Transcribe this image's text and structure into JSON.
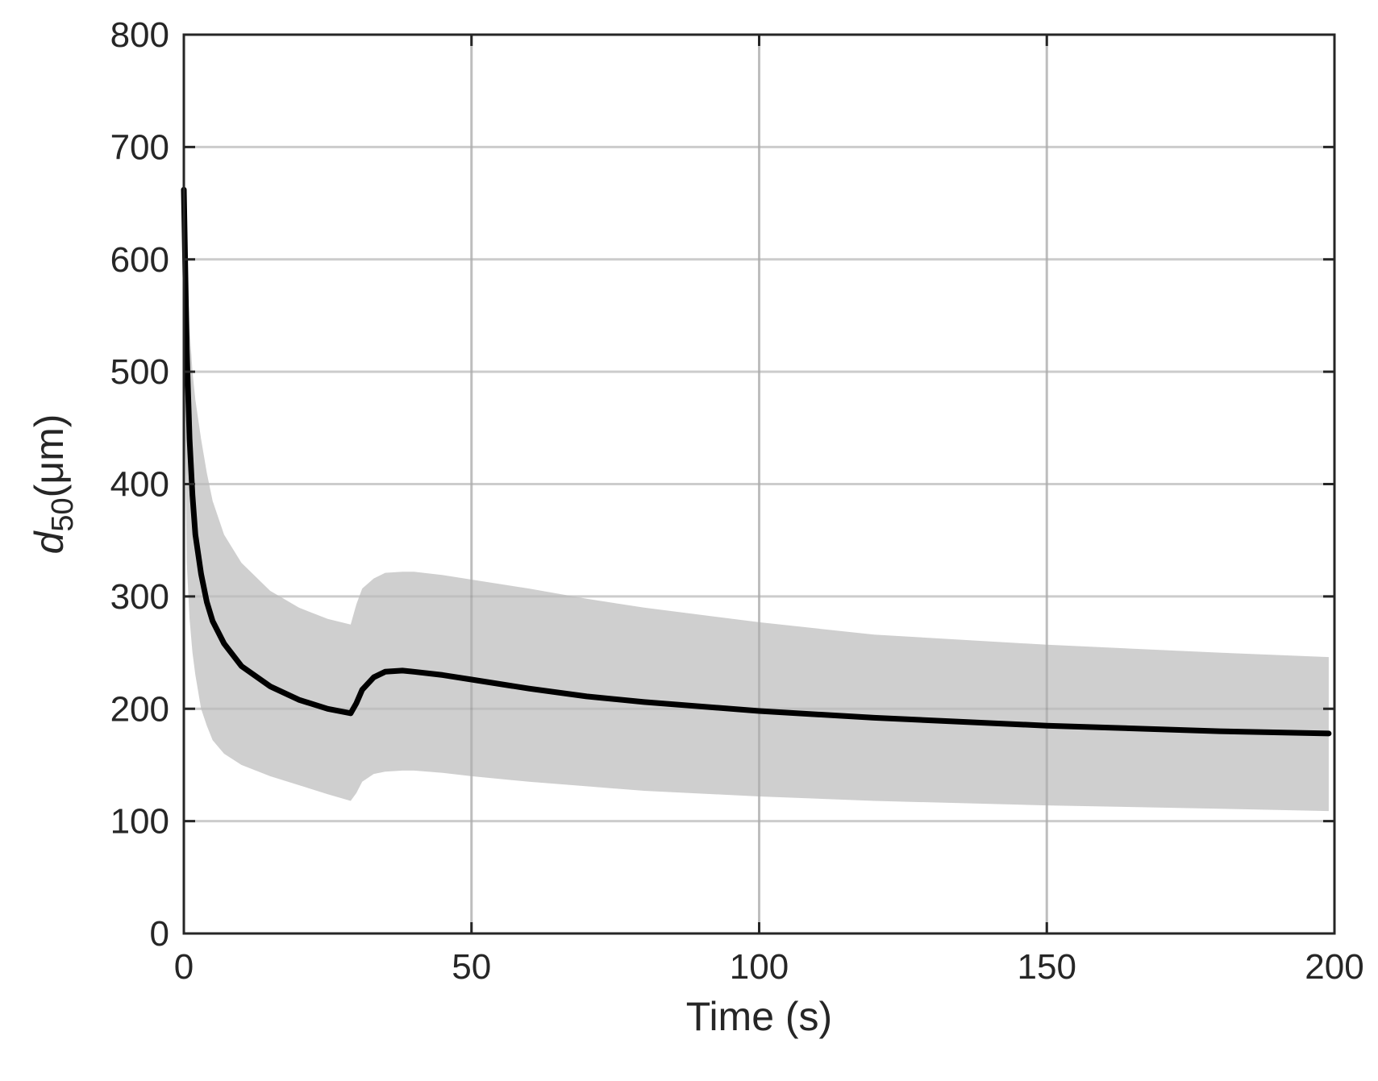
{
  "chart_data": {
    "type": "line",
    "xlabel": "Time (s)",
    "ylabel": {
      "symbol": "d",
      "subscript": "50",
      "unit": "(μm)"
    },
    "xlim": [
      0,
      200
    ],
    "ylim": [
      0,
      800
    ],
    "x_ticks": [
      0,
      50,
      100,
      150,
      200
    ],
    "y_ticks": [
      0,
      100,
      200,
      300,
      400,
      500,
      600,
      700,
      800
    ],
    "grid": true,
    "colors": {
      "line": "#000000",
      "band": "#cccccc",
      "axes": "#262626",
      "grid": "#d9d9d9"
    },
    "series": [
      {
        "type": "line",
        "x": [
          0,
          0.5,
          1,
          1.5,
          2,
          3,
          4,
          5,
          7,
          10,
          15,
          20,
          25,
          29,
          30,
          31,
          33,
          35,
          38,
          40,
          45,
          50,
          60,
          70,
          80,
          100,
          120,
          150,
          180,
          199
        ],
        "y": [
          662,
          520,
          440,
          390,
          355,
          320,
          295,
          278,
          258,
          238,
          220,
          208,
          200,
          196,
          205,
          217,
          228,
          233,
          234,
          233,
          230,
          226,
          218,
          211,
          206,
          198,
          192,
          185,
          180,
          178
        ]
      },
      {
        "type": "band",
        "x": [
          0,
          0.5,
          1,
          1.5,
          2,
          3,
          4,
          5,
          7,
          10,
          15,
          20,
          25,
          29,
          30,
          31,
          33,
          35,
          38,
          40,
          45,
          50,
          60,
          70,
          80,
          100,
          120,
          150,
          180,
          199
        ],
        "upper": [
          710,
          600,
          540,
          500,
          475,
          440,
          410,
          385,
          355,
          330,
          305,
          290,
          280,
          275,
          293,
          307,
          316,
          321,
          322,
          322,
          319,
          315,
          307,
          298,
          290,
          277,
          266,
          257,
          250,
          246
        ],
        "lower": [
          520,
          330,
          280,
          250,
          230,
          200,
          185,
          172,
          160,
          150,
          140,
          132,
          124,
          118,
          125,
          135,
          142,
          144,
          145,
          145,
          143,
          140,
          135,
          131,
          127,
          122,
          118,
          114,
          111,
          109
        ]
      }
    ]
  }
}
